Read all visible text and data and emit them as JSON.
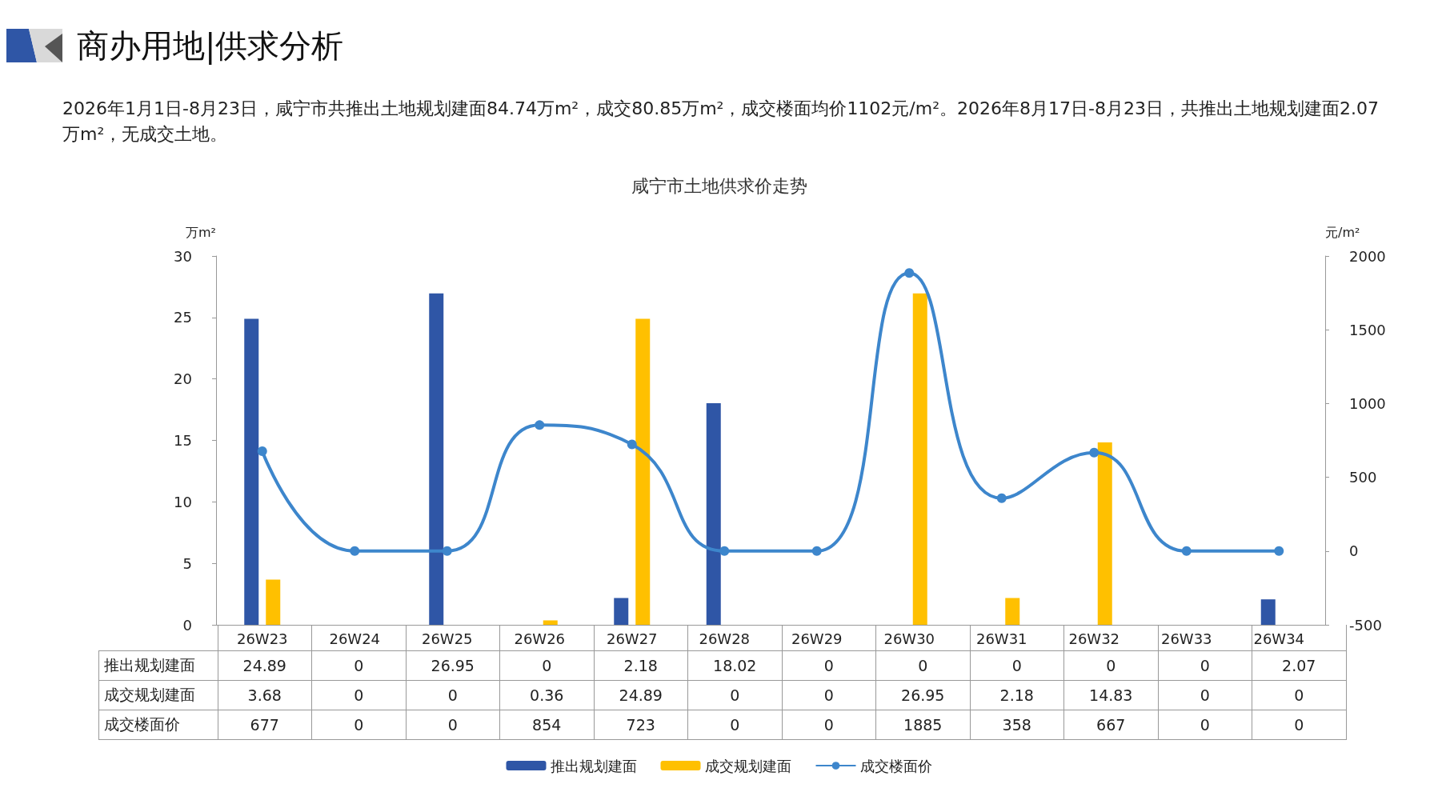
{
  "chart_data": {
    "type": "bar",
    "title": "咸宁市土地供求价走势",
    "annotations": [
      "商办用地|供求分析",
      "2026年1月1日-8月23日，咸宁市共推出土地规划建面84.74万m²，成交80.85万m²，成交楼面均价1102元/m²。2026年8月17日-8月23日，共推出土地规划建面2.07万m²，无成交土地。"
    ],
    "ylabel": "万m²",
    "y2label": "元/m²",
    "categories": [
      "26W23",
      "26W24",
      "26W25",
      "26W26",
      "26W27",
      "26W28",
      "26W29",
      "26W30",
      "26W31",
      "26W32",
      "26W33",
      "26W34"
    ],
    "series": [
      {
        "name": "推出规划建面",
        "color": "#2f56a6",
        "values": [
          24.89,
          0,
          26.95,
          0,
          2.18,
          18.02,
          0,
          0,
          0,
          0,
          0,
          2.07
        ]
      },
      {
        "name": "成交规划建面",
        "color": "#ffc000",
        "values": [
          3.68,
          0,
          0,
          0.36,
          24.89,
          0,
          0,
          26.95,
          2.18,
          14.83,
          0,
          0
        ]
      },
      {
        "name": "成交楼面价",
        "type": "line",
        "axis": "y2",
        "color": "#3d86cc",
        "values": [
          677,
          0,
          0,
          854,
          723,
          0,
          0,
          1885,
          358,
          667,
          0,
          0
        ]
      }
    ],
    "ylim": [
      0,
      30
    ],
    "yticks": [
      0,
      5,
      10,
      15,
      20,
      25,
      30
    ],
    "y2lim": [
      -500,
      2000
    ],
    "y2ticks": [
      -500,
      0,
      500,
      1000,
      1500,
      2000
    ],
    "data_labels": true,
    "legend": "bottom",
    "marker": "circle",
    "line_style": "solid",
    "grid": false
  }
}
